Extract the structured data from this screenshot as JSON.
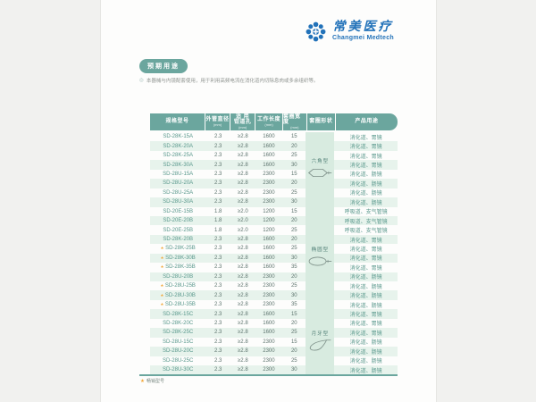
{
  "logo": {
    "brand_cn": "常美医疗",
    "brand_en": "Changmei Medtech"
  },
  "badge_label": "预期用途",
  "note": "本器械与内镜配套使用，用于利用高频电流在消化道内切除息肉或多余组织等。",
  "footnote": "畅销型号",
  "colors": {
    "teal": "#6ba69e",
    "stripe": "#e7f3ec",
    "shape_column": "#d8ebe0",
    "brand_blue": "#2272b9",
    "star_orange": "#f2a93b"
  },
  "table": {
    "headers": [
      {
        "lines": [
          "规格型号"
        ],
        "unit": ""
      },
      {
        "lines": [
          "外管直径"
        ],
        "unit": "(mm)"
      },
      {
        "lines": [
          "适 用",
          "钳道孔"
        ],
        "unit": "(mm)"
      },
      {
        "lines": [
          "工作长度"
        ],
        "unit": "(mm)"
      },
      {
        "lines": [
          "套圈宽度"
        ],
        "unit": "(mm)"
      },
      {
        "lines": [
          "套圈形状"
        ],
        "unit": ""
      },
      {
        "lines": [
          "产品用途"
        ],
        "unit": ""
      }
    ],
    "sections": [
      {
        "shape_label": "六角型",
        "shape_icon": "hexagon-snare-icon",
        "rows": [
          {
            "model": "SD-28K-15A",
            "od": "2.3",
            "channel": "≥2.8",
            "length": "1600",
            "width": "15",
            "use": "消化道、胃镜",
            "starred": false
          },
          {
            "model": "SD-28K-20A",
            "od": "2.3",
            "channel": "≥2.8",
            "length": "1600",
            "width": "20",
            "use": "消化道、胃镜",
            "starred": false
          },
          {
            "model": "SD-28K-25A",
            "od": "2.3",
            "channel": "≥2.8",
            "length": "1600",
            "width": "25",
            "use": "消化道、胃镜",
            "starred": false
          },
          {
            "model": "SD-28K-30A",
            "od": "2.3",
            "channel": "≥2.8",
            "length": "1600",
            "width": "30",
            "use": "消化道、胃镜",
            "starred": false
          },
          {
            "model": "SD-28U-15A",
            "od": "2.3",
            "channel": "≥2.8",
            "length": "2300",
            "width": "15",
            "use": "消化道、肠镜",
            "starred": false
          },
          {
            "model": "SD-28U-20A",
            "od": "2.3",
            "channel": "≥2.8",
            "length": "2300",
            "width": "20",
            "use": "消化道、肠镜",
            "starred": false
          },
          {
            "model": "SD-28U-25A",
            "od": "2.3",
            "channel": "≥2.8",
            "length": "2300",
            "width": "25",
            "use": "消化道、肠镜",
            "starred": false
          },
          {
            "model": "SD-28U-30A",
            "od": "2.3",
            "channel": "≥2.8",
            "length": "2300",
            "width": "30",
            "use": "消化道、肠镜",
            "starred": false
          }
        ]
      },
      {
        "shape_label": "椭圆型",
        "shape_icon": "oval-snare-icon",
        "rows": [
          {
            "model": "SD-20E-15B",
            "od": "1.8",
            "channel": "≥2.0",
            "length": "1200",
            "width": "15",
            "use": "呼吸道、支气管镜",
            "starred": false
          },
          {
            "model": "SD-20E-20B",
            "od": "1.8",
            "channel": "≥2.0",
            "length": "1200",
            "width": "20",
            "use": "呼吸道、支气管镜",
            "starred": false
          },
          {
            "model": "SD-20E-25B",
            "od": "1.8",
            "channel": "≥2.0",
            "length": "1200",
            "width": "25",
            "use": "呼吸道、支气管镜",
            "starred": false
          },
          {
            "model": "SD-28K-20B",
            "od": "2.3",
            "channel": "≥2.8",
            "length": "1600",
            "width": "20",
            "use": "消化道、胃镜",
            "starred": false
          },
          {
            "model": "SD-28K-25B",
            "od": "2.3",
            "channel": "≥2.8",
            "length": "1600",
            "width": "25",
            "use": "消化道、胃镜",
            "starred": true
          },
          {
            "model": "SD-28K-30B",
            "od": "2.3",
            "channel": "≥2.8",
            "length": "1600",
            "width": "30",
            "use": "消化道、胃镜",
            "starred": true
          },
          {
            "model": "SD-28K-35B",
            "od": "2.3",
            "channel": "≥2.8",
            "length": "1600",
            "width": "35",
            "use": "消化道、胃镜",
            "starred": true
          },
          {
            "model": "SD-28U-20B",
            "od": "2.3",
            "channel": "≥2.8",
            "length": "2300",
            "width": "20",
            "use": "消化道、肠镜",
            "starred": false
          },
          {
            "model": "SD-28U-25B",
            "od": "2.3",
            "channel": "≥2.8",
            "length": "2300",
            "width": "25",
            "use": "消化道、肠镜",
            "starred": true
          },
          {
            "model": "SD-28U-30B",
            "od": "2.3",
            "channel": "≥2.8",
            "length": "2300",
            "width": "30",
            "use": "消化道、肠镜",
            "starred": true
          },
          {
            "model": "SD-28U-35B",
            "od": "2.3",
            "channel": "≥2.8",
            "length": "2300",
            "width": "35",
            "use": "消化道、肠镜",
            "starred": true
          }
        ]
      },
      {
        "shape_label": "月牙型",
        "shape_icon": "crescent-snare-icon",
        "rows": [
          {
            "model": "SD-28K-15C",
            "od": "2.3",
            "channel": "≥2.8",
            "length": "1600",
            "width": "15",
            "use": "消化道、胃镜",
            "starred": false
          },
          {
            "model": "SD-28K-20C",
            "od": "2.3",
            "channel": "≥2.8",
            "length": "1600",
            "width": "20",
            "use": "消化道、胃镜",
            "starred": false
          },
          {
            "model": "SD-28K-25C",
            "od": "2.3",
            "channel": "≥2.8",
            "length": "1600",
            "width": "25",
            "use": "消化道、胃镜",
            "starred": false
          },
          {
            "model": "SD-28U-15C",
            "od": "2.3",
            "channel": "≥2.8",
            "length": "2300",
            "width": "15",
            "use": "消化道、肠镜",
            "starred": false
          },
          {
            "model": "SD-28U-20C",
            "od": "2.3",
            "channel": "≥2.8",
            "length": "2300",
            "width": "20",
            "use": "消化道、肠镜",
            "starred": false
          },
          {
            "model": "SD-28U-25C",
            "od": "2.3",
            "channel": "≥2.8",
            "length": "2300",
            "width": "25",
            "use": "消化道、肠镜",
            "starred": false
          },
          {
            "model": "SD-28U-30C",
            "od": "2.3",
            "channel": "≥2.8",
            "length": "2300",
            "width": "30",
            "use": "消化道、肠镜",
            "starred": false
          }
        ]
      }
    ]
  }
}
